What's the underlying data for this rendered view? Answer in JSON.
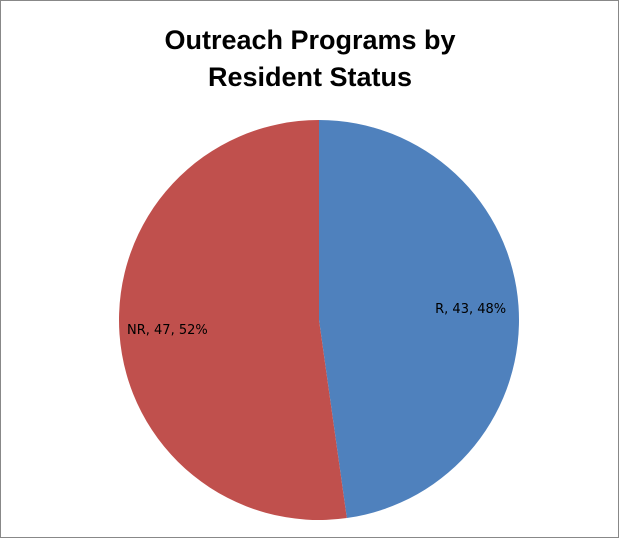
{
  "chart_data": {
    "type": "pie",
    "title": "Outreach Programs by Resident Status",
    "categories": [
      "R",
      "NR"
    ],
    "values": [
      43,
      47
    ],
    "value_labels": [
      "R, 43, 48%",
      "NR, 47, 52%"
    ],
    "colors": [
      "#4f81bd",
      "#c0504d"
    ]
  }
}
